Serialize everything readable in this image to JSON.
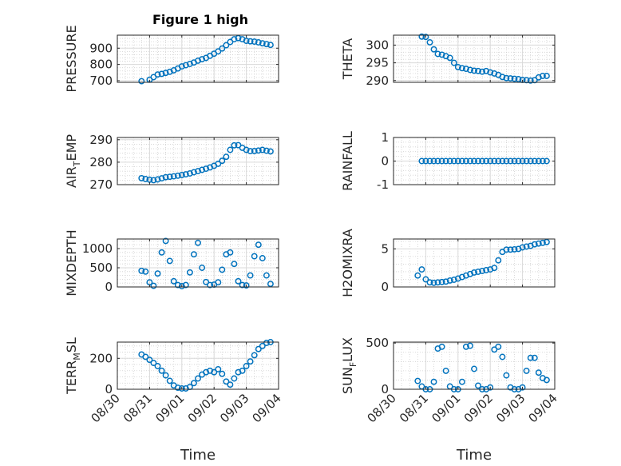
{
  "figure": {
    "title": "Figure 1 high"
  },
  "chart_data": [
    {
      "type": "scatter",
      "name_key": "pressure",
      "ylabel": "PRESSURE",
      "ylim": [
        690,
        980
      ],
      "yticks": [
        700,
        800,
        900
      ],
      "show_xticklabels": false,
      "points": [
        [
          "08/30 18:00",
          697
        ],
        [
          "08/31 00:00",
          706
        ],
        [
          "08/31 03:00",
          722
        ],
        [
          "08/31 06:00",
          738
        ],
        [
          "08/31 09:00",
          742
        ],
        [
          "08/31 12:00",
          748
        ],
        [
          "08/31 15:00",
          755
        ],
        [
          "08/31 18:00",
          764
        ],
        [
          "08/31 21:00",
          775
        ],
        [
          "09/01 00:00",
          788
        ],
        [
          "09/01 03:00",
          795
        ],
        [
          "09/01 06:00",
          803
        ],
        [
          "09/01 09:00",
          812
        ],
        [
          "09/01 12:00",
          823
        ],
        [
          "09/01 15:00",
          832
        ],
        [
          "09/01 18:00",
          840
        ],
        [
          "09/01 21:00",
          853
        ],
        [
          "09/02 00:00",
          866
        ],
        [
          "09/02 03:00",
          880
        ],
        [
          "09/02 06:00",
          898
        ],
        [
          "09/02 09:00",
          918
        ],
        [
          "09/02 12:00",
          938
        ],
        [
          "09/02 15:00",
          955
        ],
        [
          "09/02 18:00",
          962
        ],
        [
          "09/02 21:00",
          955
        ],
        [
          "09/03 00:00",
          945
        ],
        [
          "09/03 03:00",
          942
        ],
        [
          "09/03 06:00",
          940
        ],
        [
          "09/03 09:00",
          936
        ],
        [
          "09/03 12:00",
          930
        ],
        [
          "09/03 15:00",
          925
        ],
        [
          "09/03 18:00",
          920
        ]
      ]
    },
    {
      "type": "scatter",
      "name_key": "theta",
      "ylabel": "THETA",
      "ylim": [
        289.5,
        302.8
      ],
      "yticks": [
        290,
        295,
        300
      ],
      "show_xticklabels": false,
      "points": [
        [
          "08/30 21:00",
          302.4
        ],
        [
          "08/31 00:00",
          302.3
        ],
        [
          "08/31 03:00",
          300.8
        ],
        [
          "08/31 06:00",
          298.8
        ],
        [
          "08/31 09:00",
          297.5
        ],
        [
          "08/31 12:00",
          297.3
        ],
        [
          "08/31 15:00",
          296.9
        ],
        [
          "08/31 18:00",
          296.4
        ],
        [
          "08/31 21:00",
          295.0
        ],
        [
          "09/01 00:00",
          293.8
        ],
        [
          "09/01 03:00",
          293.5
        ],
        [
          "09/01 06:00",
          293.3
        ],
        [
          "09/01 09:00",
          293.0
        ],
        [
          "09/01 12:00",
          292.8
        ],
        [
          "09/01 15:00",
          292.7
        ],
        [
          "09/01 18:00",
          292.5
        ],
        [
          "09/01 21:00",
          292.7
        ],
        [
          "09/02 00:00",
          292.3
        ],
        [
          "09/02 03:00",
          292.0
        ],
        [
          "09/02 06:00",
          291.6
        ],
        [
          "09/02 09:00",
          291.0
        ],
        [
          "09/02 12:00",
          290.7
        ],
        [
          "09/02 15:00",
          290.6
        ],
        [
          "09/02 18:00",
          290.5
        ],
        [
          "09/02 21:00",
          290.4
        ],
        [
          "09/03 00:00",
          290.2
        ],
        [
          "09/03 03:00",
          290.1
        ],
        [
          "09/03 06:00",
          290.0
        ],
        [
          "09/03 09:00",
          290.1
        ],
        [
          "09/03 12:00",
          290.9
        ],
        [
          "09/03 15:00",
          291.3
        ],
        [
          "09/03 18:00",
          291.3
        ]
      ]
    },
    {
      "type": "scatter",
      "name_key": "air_temp",
      "ylabel_main": "AIR",
      "ylabel_sub": "T",
      "ylabel_rest": "EMP",
      "ylim": [
        270,
        291
      ],
      "yticks": [
        270,
        280,
        290
      ],
      "show_xticklabels": false,
      "points": [
        [
          "08/30 18:00",
          272.9
        ],
        [
          "08/30 21:00",
          272.5
        ],
        [
          "08/31 00:00",
          272.2
        ],
        [
          "08/31 03:00",
          272.0
        ],
        [
          "08/31 06:00",
          272.3
        ],
        [
          "08/31 09:00",
          272.8
        ],
        [
          "08/31 12:00",
          273.3
        ],
        [
          "08/31 15:00",
          273.5
        ],
        [
          "08/31 18:00",
          273.7
        ],
        [
          "08/31 21:00",
          274.0
        ],
        [
          "09/01 00:00",
          274.3
        ],
        [
          "09/01 03:00",
          274.6
        ],
        [
          "09/01 06:00",
          275.0
        ],
        [
          "09/01 09:00",
          275.5
        ],
        [
          "09/01 12:00",
          276.0
        ],
        [
          "09/01 15:00",
          276.6
        ],
        [
          "09/01 18:00",
          277.1
        ],
        [
          "09/01 21:00",
          277.7
        ],
        [
          "09/02 00:00",
          278.4
        ],
        [
          "09/02 03:00",
          279.3
        ],
        [
          "09/02 06:00",
          280.6
        ],
        [
          "09/02 09:00",
          282.4
        ],
        [
          "09/02 12:00",
          285.5
        ],
        [
          "09/02 15:00",
          287.5
        ],
        [
          "09/02 18:00",
          287.6
        ],
        [
          "09/02 21:00",
          286.4
        ],
        [
          "09/03 00:00",
          285.5
        ],
        [
          "09/03 03:00",
          284.9
        ],
        [
          "09/03 06:00",
          285.0
        ],
        [
          "09/03 09:00",
          285.2
        ],
        [
          "09/03 12:00",
          285.5
        ],
        [
          "09/03 15:00",
          285.1
        ],
        [
          "09/03 18:00",
          284.8
        ]
      ]
    },
    {
      "type": "scatter",
      "name_key": "rainfall",
      "ylabel": "RAINFALL",
      "ylim": [
        -1,
        1
      ],
      "yticks": [
        -1,
        0,
        1
      ],
      "show_xticklabels": false,
      "points": [
        [
          "08/30 21:00",
          0
        ],
        [
          "08/31 00:00",
          0
        ],
        [
          "08/31 03:00",
          0
        ],
        [
          "08/31 06:00",
          0
        ],
        [
          "08/31 09:00",
          0
        ],
        [
          "08/31 12:00",
          0
        ],
        [
          "08/31 15:00",
          0
        ],
        [
          "08/31 18:00",
          0
        ],
        [
          "08/31 21:00",
          0
        ],
        [
          "09/01 00:00",
          0
        ],
        [
          "09/01 03:00",
          0
        ],
        [
          "09/01 06:00",
          0
        ],
        [
          "09/01 09:00",
          0
        ],
        [
          "09/01 12:00",
          0
        ],
        [
          "09/01 15:00",
          0
        ],
        [
          "09/01 18:00",
          0
        ],
        [
          "09/01 21:00",
          0
        ],
        [
          "09/02 00:00",
          0
        ],
        [
          "09/02 03:00",
          0
        ],
        [
          "09/02 06:00",
          0
        ],
        [
          "09/02 09:00",
          0
        ],
        [
          "09/02 12:00",
          0
        ],
        [
          "09/02 15:00",
          0
        ],
        [
          "09/02 18:00",
          0
        ],
        [
          "09/02 21:00",
          0
        ],
        [
          "09/03 00:00",
          0
        ],
        [
          "09/03 03:00",
          0
        ],
        [
          "09/03 06:00",
          0
        ],
        [
          "09/03 09:00",
          0
        ],
        [
          "09/03 12:00",
          0
        ],
        [
          "09/03 15:00",
          0
        ],
        [
          "09/03 18:00",
          0
        ]
      ]
    },
    {
      "type": "scatter",
      "name_key": "mixdepth",
      "ylabel": "MIXDEPTH",
      "ylim": [
        0,
        1250
      ],
      "yticks": [
        0,
        500,
        1000
      ],
      "show_xticklabels": false,
      "points": [
        [
          "08/30 18:00",
          420
        ],
        [
          "08/30 21:00",
          400
        ],
        [
          "08/31 00:00",
          120
        ],
        [
          "08/31 03:00",
          30
        ],
        [
          "08/31 06:00",
          350
        ],
        [
          "08/31 09:00",
          900
        ],
        [
          "08/31 12:00",
          1200
        ],
        [
          "08/31 15:00",
          680
        ],
        [
          "08/31 18:00",
          150
        ],
        [
          "08/31 21:00",
          50
        ],
        [
          "09/01 00:00",
          20
        ],
        [
          "09/01 03:00",
          50
        ],
        [
          "09/01 06:00",
          380
        ],
        [
          "09/01 09:00",
          850
        ],
        [
          "09/01 12:00",
          1150
        ],
        [
          "09/01 15:00",
          500
        ],
        [
          "09/01 18:00",
          130
        ],
        [
          "09/01 21:00",
          50
        ],
        [
          "09/02 00:00",
          60
        ],
        [
          "09/02 03:00",
          120
        ],
        [
          "09/02 06:00",
          450
        ],
        [
          "09/02 09:00",
          850
        ],
        [
          "09/02 12:00",
          900
        ],
        [
          "09/02 15:00",
          600
        ],
        [
          "09/02 18:00",
          150
        ],
        [
          "09/02 21:00",
          50
        ],
        [
          "09/03 00:00",
          40
        ],
        [
          "09/03 03:00",
          300
        ],
        [
          "09/03 06:00",
          800
        ],
        [
          "09/03 09:00",
          1100
        ],
        [
          "09/03 12:00",
          750
        ],
        [
          "09/03 15:00",
          300
        ],
        [
          "09/03 18:00",
          80
        ]
      ]
    },
    {
      "type": "scatter",
      "name_key": "h2omixra",
      "ylabel": "H2OMIXRA",
      "ylim": [
        0,
        6.3
      ],
      "yticks": [
        0,
        5
      ],
      "show_xticklabels": false,
      "points": [
        [
          "08/30 18:00",
          1.5
        ],
        [
          "08/30 21:00",
          2.3
        ],
        [
          "08/31 00:00",
          1.0
        ],
        [
          "08/31 03:00",
          0.6
        ],
        [
          "08/31 06:00",
          0.55
        ],
        [
          "08/31 09:00",
          0.6
        ],
        [
          "08/31 12:00",
          0.65
        ],
        [
          "08/31 15:00",
          0.7
        ],
        [
          "08/31 18:00",
          0.85
        ],
        [
          "08/31 21:00",
          0.95
        ],
        [
          "09/01 00:00",
          1.1
        ],
        [
          "09/01 03:00",
          1.3
        ],
        [
          "09/01 06:00",
          1.5
        ],
        [
          "09/01 09:00",
          1.7
        ],
        [
          "09/01 12:00",
          1.9
        ],
        [
          "09/01 15:00",
          2.0
        ],
        [
          "09/01 18:00",
          2.1
        ],
        [
          "09/01 21:00",
          2.2
        ],
        [
          "09/02 00:00",
          2.3
        ],
        [
          "09/02 03:00",
          2.5
        ],
        [
          "09/02 06:00",
          3.5
        ],
        [
          "09/02 09:00",
          4.6
        ],
        [
          "09/02 12:00",
          4.9
        ],
        [
          "09/02 15:00",
          4.9
        ],
        [
          "09/02 18:00",
          4.95
        ],
        [
          "09/02 21:00",
          5.0
        ],
        [
          "09/03 00:00",
          5.2
        ],
        [
          "09/03 03:00",
          5.3
        ],
        [
          "09/03 06:00",
          5.4
        ],
        [
          "09/03 09:00",
          5.6
        ],
        [
          "09/03 12:00",
          5.7
        ],
        [
          "09/03 15:00",
          5.8
        ],
        [
          "09/03 18:00",
          5.9
        ]
      ]
    },
    {
      "type": "scatter",
      "name_key": "terr_msl",
      "ylabel_main": "TERR",
      "ylabel_sub": "M",
      "ylabel_rest": "SL",
      "ylim": [
        0,
        305
      ],
      "yticks": [
        0,
        200
      ],
      "show_xticklabels": true,
      "xlabel": "Time",
      "points": [
        [
          "08/30 18:00",
          225
        ],
        [
          "08/30 21:00",
          210
        ],
        [
          "08/31 00:00",
          190
        ],
        [
          "08/31 03:00",
          170
        ],
        [
          "08/31 06:00",
          150
        ],
        [
          "08/31 09:00",
          120
        ],
        [
          "08/31 12:00",
          90
        ],
        [
          "08/31 15:00",
          55
        ],
        [
          "08/31 18:00",
          25
        ],
        [
          "08/31 21:00",
          10
        ],
        [
          "09/01 00:00",
          5
        ],
        [
          "09/01 03:00",
          5
        ],
        [
          "09/01 06:00",
          15
        ],
        [
          "09/01 09:00",
          40
        ],
        [
          "09/01 12:00",
          70
        ],
        [
          "09/01 15:00",
          95
        ],
        [
          "09/01 18:00",
          110
        ],
        [
          "09/01 21:00",
          120
        ],
        [
          "09/02 00:00",
          110
        ],
        [
          "09/02 03:00",
          130
        ],
        [
          "09/02 06:00",
          100
        ],
        [
          "09/02 09:00",
          50
        ],
        [
          "09/02 12:00",
          30
        ],
        [
          "09/02 15:00",
          70
        ],
        [
          "09/02 18:00",
          110
        ],
        [
          "09/02 21:00",
          120
        ],
        [
          "09/03 00:00",
          150
        ],
        [
          "09/03 03:00",
          180
        ],
        [
          "09/03 06:00",
          220
        ],
        [
          "09/03 09:00",
          260
        ],
        [
          "09/03 12:00",
          280
        ],
        [
          "09/03 15:00",
          300
        ],
        [
          "09/03 18:00",
          305
        ]
      ]
    },
    {
      "type": "scatter",
      "name_key": "sun_flux",
      "ylabel_main": "SUN",
      "ylabel_sub": "F",
      "ylabel_rest": "LUX",
      "ylim": [
        0,
        510
      ],
      "yticks": [
        0,
        500
      ],
      "show_xticklabels": true,
      "xlabel": "Time",
      "points": [
        [
          "08/30 18:00",
          90
        ],
        [
          "08/30 21:00",
          30
        ],
        [
          "08/31 00:00",
          0
        ],
        [
          "08/31 03:00",
          0
        ],
        [
          "08/31 06:00",
          80
        ],
        [
          "08/31 09:00",
          440
        ],
        [
          "08/31 12:00",
          460
        ],
        [
          "08/31 15:00",
          200
        ],
        [
          "08/31 18:00",
          30
        ],
        [
          "08/31 21:00",
          0
        ],
        [
          "09/01 00:00",
          0
        ],
        [
          "09/01 03:00",
          80
        ],
        [
          "09/01 06:00",
          460
        ],
        [
          "09/01 09:00",
          470
        ],
        [
          "09/01 12:00",
          220
        ],
        [
          "09/01 15:00",
          40
        ],
        [
          "09/01 18:00",
          0
        ],
        [
          "09/01 21:00",
          0
        ],
        [
          "09/02 00:00",
          20
        ],
        [
          "09/02 03:00",
          430
        ],
        [
          "09/02 06:00",
          460
        ],
        [
          "09/02 09:00",
          350
        ],
        [
          "09/02 12:00",
          150
        ],
        [
          "09/02 15:00",
          20
        ],
        [
          "09/02 18:00",
          0
        ],
        [
          "09/02 21:00",
          0
        ],
        [
          "09/03 00:00",
          20
        ],
        [
          "09/03 03:00",
          200
        ],
        [
          "09/03 06:00",
          340
        ],
        [
          "09/03 09:00",
          340
        ],
        [
          "09/03 12:00",
          180
        ],
        [
          "09/03 15:00",
          120
        ],
        [
          "09/03 18:00",
          100
        ]
      ]
    }
  ],
  "xaxis": {
    "range": [
      "08/30 00:00",
      "09/04 00:00"
    ],
    "ticks": [
      "08/30",
      "08/31",
      "09/01",
      "09/02",
      "09/03",
      "09/04"
    ]
  },
  "style": {
    "marker_color": "#0072BD",
    "grid": true,
    "minor_grid": true,
    "box": true
  }
}
